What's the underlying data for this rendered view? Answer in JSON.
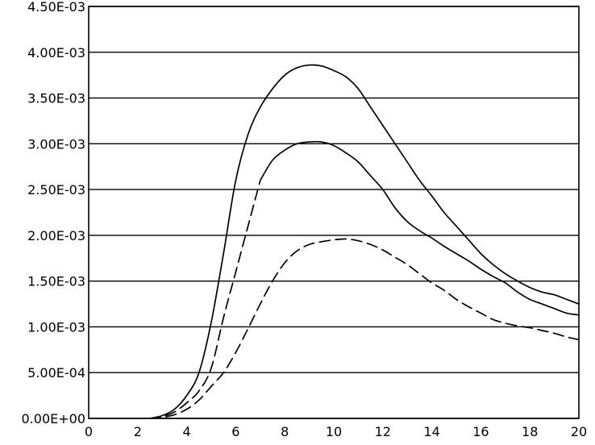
{
  "chart_data": {
    "type": "line",
    "title": "",
    "xlabel": "",
    "ylabel": "",
    "xlim": [
      0,
      20
    ],
    "ylim": [
      0,
      0.0045
    ],
    "grid": "horizontal",
    "legend": "none",
    "x_ticks": [
      0,
      2,
      4,
      6,
      8,
      10,
      12,
      14,
      16,
      18,
      20
    ],
    "x_tick_labels": [
      "0",
      "2",
      "4",
      "6",
      "8",
      "10",
      "12",
      "14",
      "16",
      "18",
      "20"
    ],
    "y_ticks": [
      0,
      0.0005,
      0.001,
      0.0015,
      0.002,
      0.0025,
      0.003,
      0.0035,
      0.004,
      0.0045
    ],
    "y_tick_labels": [
      "0.00E+00",
      "5.00E-04",
      "1.00E-03",
      "1.50E-03",
      "2.00E-03",
      "2.50E-03",
      "3.00E-03",
      "3.50E-03",
      "4.00E-03",
      "4.50E-03"
    ],
    "series": [
      {
        "style": "solid",
        "points": [
          [
            2.5,
            0
          ],
          [
            3,
            3e-05
          ],
          [
            3.5,
            0.0001
          ],
          [
            4,
            0.00025
          ],
          [
            4.5,
            0.0005
          ],
          [
            5,
            0.00105
          ],
          [
            5.5,
            0.0018
          ],
          [
            6,
            0.0026
          ],
          [
            6.5,
            0.0031
          ],
          [
            7,
            0.0034
          ],
          [
            7.5,
            0.0036
          ],
          [
            8,
            0.00375
          ],
          [
            8.5,
            0.00383
          ],
          [
            9,
            0.00386
          ],
          [
            9.5,
            0.00385
          ],
          [
            10,
            0.0038
          ],
          [
            10.5,
            0.00373
          ],
          [
            11,
            0.0036
          ],
          [
            11.5,
            0.0034
          ],
          [
            12,
            0.0032
          ],
          [
            12.5,
            0.003
          ],
          [
            13,
            0.0028
          ],
          [
            13.5,
            0.0026
          ],
          [
            14,
            0.00243
          ],
          [
            14.5,
            0.00225
          ],
          [
            15,
            0.0021
          ],
          [
            15.5,
            0.00195
          ],
          [
            16,
            0.0018
          ],
          [
            16.5,
            0.00168
          ],
          [
            17,
            0.00158
          ],
          [
            17.5,
            0.0015
          ],
          [
            18,
            0.00143
          ],
          [
            18.5,
            0.00138
          ],
          [
            19,
            0.00135
          ],
          [
            19.5,
            0.0013
          ],
          [
            20,
            0.00125
          ]
        ]
      },
      {
        "style": "solid-dashed",
        "points": [
          [
            2.5,
            0
          ],
          [
            3,
            2e-05
          ],
          [
            3.5,
            7e-05
          ],
          [
            4,
            0.00017
          ],
          [
            4.5,
            0.0003
          ],
          [
            5,
            0.00055
          ],
          [
            5.5,
            0.0011
          ],
          [
            6,
            0.0016
          ],
          [
            6.5,
            0.0021
          ],
          [
            7,
            0.0026
          ],
          [
            7.5,
            0.00282
          ],
          [
            8,
            0.00293
          ],
          [
            8.5,
            0.003
          ],
          [
            9,
            0.00302
          ],
          [
            9.5,
            0.00302
          ],
          [
            10,
            0.00298
          ],
          [
            10.5,
            0.0029
          ],
          [
            11,
            0.0028
          ],
          [
            11.5,
            0.00265
          ],
          [
            12,
            0.0025
          ],
          [
            12.5,
            0.0023
          ],
          [
            13,
            0.00215
          ],
          [
            13.5,
            0.00205
          ],
          [
            14,
            0.00197
          ],
          [
            14.5,
            0.00188
          ],
          [
            15,
            0.0018
          ],
          [
            15.5,
            0.00172
          ],
          [
            16,
            0.00163
          ],
          [
            16.5,
            0.00155
          ],
          [
            17,
            0.00148
          ],
          [
            17.5,
            0.00138
          ],
          [
            18,
            0.0013
          ],
          [
            18.5,
            0.00125
          ],
          [
            19,
            0.0012
          ],
          [
            19.5,
            0.00115
          ],
          [
            20,
            0.00113
          ]
        ]
      },
      {
        "style": "dashed",
        "points": [
          [
            2.5,
            0
          ],
          [
            3,
            1e-05
          ],
          [
            3.5,
            4e-05
          ],
          [
            4,
            0.0001
          ],
          [
            4.5,
            0.0002
          ],
          [
            5,
            0.00035
          ],
          [
            5.5,
            0.0005
          ],
          [
            6,
            0.00072
          ],
          [
            6.5,
            0.00098
          ],
          [
            7,
            0.00125
          ],
          [
            7.5,
            0.0015
          ],
          [
            8,
            0.0017
          ],
          [
            8.5,
            0.00183
          ],
          [
            9,
            0.0019
          ],
          [
            9.5,
            0.00193
          ],
          [
            10,
            0.00195
          ],
          [
            10.5,
            0.00196
          ],
          [
            11,
            0.00194
          ],
          [
            11.5,
            0.0019
          ],
          [
            12,
            0.00184
          ],
          [
            12.5,
            0.00176
          ],
          [
            13,
            0.00168
          ],
          [
            13.5,
            0.00158
          ],
          [
            14,
            0.00148
          ],
          [
            14.5,
            0.0014
          ],
          [
            15,
            0.0013
          ],
          [
            15.5,
            0.00122
          ],
          [
            16,
            0.00115
          ],
          [
            16.5,
            0.00108
          ],
          [
            17,
            0.00104
          ],
          [
            17.5,
            0.00101
          ],
          [
            18,
            0.00099
          ],
          [
            18.5,
            0.00096
          ],
          [
            19,
            0.00093
          ],
          [
            19.5,
            0.00089
          ],
          [
            20,
            0.00086
          ]
        ]
      }
    ]
  }
}
